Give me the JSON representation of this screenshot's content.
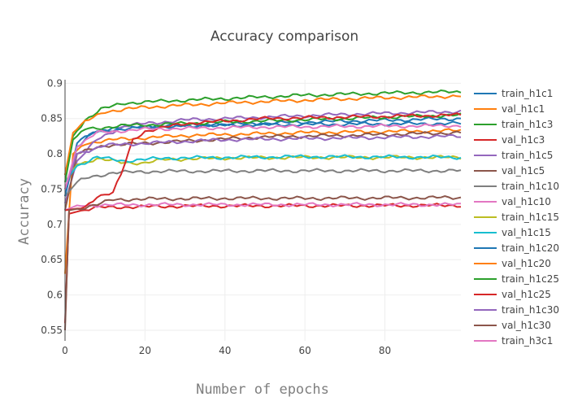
{
  "chart_data": {
    "type": "line",
    "title": "Accuracy comparison",
    "xlabel": "Number of epochs",
    "ylabel": "Accuracy",
    "xlim": [
      0,
      99
    ],
    "ylim": [
      0.535,
      0.905
    ],
    "xticks": [
      "0",
      "20",
      "40",
      "60",
      "80"
    ],
    "yticks": [
      "0.55",
      "0.6",
      "0.65",
      "0.7",
      "0.75",
      "0.8",
      "0.85",
      "0.9"
    ],
    "grid": true,
    "legend_position": "right",
    "series": [
      {
        "name": "train_h1c1",
        "color": "#1f77b4",
        "points": [
          [
            0,
            0.74
          ],
          [
            3,
            0.815
          ],
          [
            7,
            0.831
          ],
          [
            15,
            0.838
          ],
          [
            30,
            0.84
          ],
          [
            50,
            0.841
          ],
          [
            70,
            0.842
          ],
          [
            99,
            0.843
          ]
        ]
      },
      {
        "name": "val_h1c1",
        "color": "#ff7f0e",
        "points": [
          [
            0,
            0.63
          ],
          [
            2,
            0.8
          ],
          [
            5,
            0.815
          ],
          [
            12,
            0.82
          ],
          [
            30,
            0.826
          ],
          [
            60,
            0.83
          ],
          [
            99,
            0.833
          ]
        ]
      },
      {
        "name": "train_h1c3",
        "color": "#2ca02c",
        "points": [
          [
            0,
            0.77
          ],
          [
            2,
            0.825
          ],
          [
            5,
            0.848
          ],
          [
            9,
            0.863
          ],
          [
            15,
            0.872
          ],
          [
            30,
            0.876
          ],
          [
            60,
            0.883
          ],
          [
            80,
            0.886
          ],
          [
            99,
            0.888
          ]
        ]
      },
      {
        "name": "val_h1c3",
        "color": "#d62728",
        "points": [
          [
            0,
            0.56
          ],
          [
            1,
            0.715
          ],
          [
            3,
            0.718
          ],
          [
            8,
            0.724
          ],
          [
            30,
            0.726
          ],
          [
            99,
            0.727
          ]
        ]
      },
      {
        "name": "train_h1c5",
        "color": "#9467bd",
        "points": [
          [
            0,
            0.73
          ],
          [
            3,
            0.79
          ],
          [
            8,
            0.82
          ],
          [
            15,
            0.84
          ],
          [
            30,
            0.848
          ],
          [
            50,
            0.852
          ],
          [
            70,
            0.856
          ],
          [
            99,
            0.86
          ]
        ]
      },
      {
        "name": "val_h1c5",
        "color": "#8c564b",
        "points": [
          [
            0,
            0.72
          ],
          [
            3,
            0.8
          ],
          [
            10,
            0.812
          ],
          [
            20,
            0.815
          ],
          [
            30,
            0.818
          ],
          [
            50,
            0.824
          ],
          [
            70,
            0.826
          ],
          [
            99,
            0.83
          ]
        ]
      },
      {
        "name": "train_h1c10",
        "color": "#7f7f7f",
        "points": [
          [
            0,
            0.74
          ],
          [
            3,
            0.76
          ],
          [
            6,
            0.767
          ],
          [
            12,
            0.773
          ],
          [
            20,
            0.775
          ],
          [
            50,
            0.776
          ],
          [
            99,
            0.776
          ]
        ]
      },
      {
        "name": "val_h1c10",
        "color": "#e377c2",
        "points": [
          [
            0,
            0.72
          ],
          [
            3,
            0.727
          ],
          [
            20,
            0.728
          ],
          [
            60,
            0.728
          ],
          [
            99,
            0.728
          ]
        ]
      },
      {
        "name": "train_h1c15",
        "color": "#bcbd22",
        "points": [
          [
            0,
            0.76
          ],
          [
            3,
            0.785
          ],
          [
            8,
            0.793
          ],
          [
            14,
            0.788
          ],
          [
            20,
            0.787
          ],
          [
            25,
            0.792
          ],
          [
            40,
            0.794
          ],
          [
            60,
            0.795
          ],
          [
            99,
            0.795
          ]
        ]
      },
      {
        "name": "val_h1c15",
        "color": "#17becf",
        "points": [
          [
            0,
            0.76
          ],
          [
            3,
            0.783
          ],
          [
            8,
            0.795
          ],
          [
            15,
            0.79
          ],
          [
            25,
            0.794
          ],
          [
            60,
            0.796
          ],
          [
            99,
            0.795
          ]
        ]
      },
      {
        "name": "train_h1c20",
        "color": "#1f77b4",
        "points": [
          [
            0,
            0.74
          ],
          [
            3,
            0.81
          ],
          [
            7,
            0.83
          ],
          [
            15,
            0.836
          ],
          [
            30,
            0.84
          ],
          [
            60,
            0.845
          ],
          [
            99,
            0.85
          ]
        ]
      },
      {
        "name": "val_h1c20",
        "color": "#ff7f0e",
        "points": [
          [
            0,
            0.77
          ],
          [
            2,
            0.83
          ],
          [
            5,
            0.845
          ],
          [
            10,
            0.86
          ],
          [
            20,
            0.866
          ],
          [
            40,
            0.872
          ],
          [
            70,
            0.878
          ],
          [
            99,
            0.882
          ]
        ]
      },
      {
        "name": "train_h1c25",
        "color": "#2ca02c",
        "points": [
          [
            0,
            0.76
          ],
          [
            2,
            0.82
          ],
          [
            5,
            0.835
          ],
          [
            15,
            0.84
          ],
          [
            40,
            0.845
          ],
          [
            70,
            0.85
          ],
          [
            99,
            0.855
          ]
        ]
      },
      {
        "name": "val_h1c25",
        "color": "#d62728",
        "points": [
          [
            0,
            0.72
          ],
          [
            5,
            0.724
          ],
          [
            8,
            0.74
          ],
          [
            12,
            0.745
          ],
          [
            14,
            0.77
          ],
          [
            17,
            0.82
          ],
          [
            20,
            0.832
          ],
          [
            30,
            0.843
          ],
          [
            50,
            0.85
          ],
          [
            99,
            0.855
          ]
        ]
      },
      {
        "name": "train_h1c30",
        "color": "#9467bd",
        "points": [
          [
            0,
            0.75
          ],
          [
            3,
            0.8
          ],
          [
            10,
            0.812
          ],
          [
            20,
            0.815
          ],
          [
            40,
            0.82
          ],
          [
            99,
            0.825
          ]
        ]
      },
      {
        "name": "val_h1c30",
        "color": "#8c564b",
        "points": [
          [
            0,
            0.55
          ],
          [
            1,
            0.72
          ],
          [
            3,
            0.722
          ],
          [
            8,
            0.728
          ],
          [
            12,
            0.735
          ],
          [
            20,
            0.736
          ],
          [
            40,
            0.737
          ],
          [
            60,
            0.737
          ],
          [
            99,
            0.738
          ]
        ]
      },
      {
        "name": "train_h3c1",
        "color": "#e377c2",
        "points": [
          [
            0,
            0.75
          ],
          [
            3,
            0.81
          ],
          [
            8,
            0.83
          ],
          [
            20,
            0.835
          ],
          [
            50,
            0.838
          ],
          [
            99,
            0.84
          ]
        ]
      }
    ]
  }
}
